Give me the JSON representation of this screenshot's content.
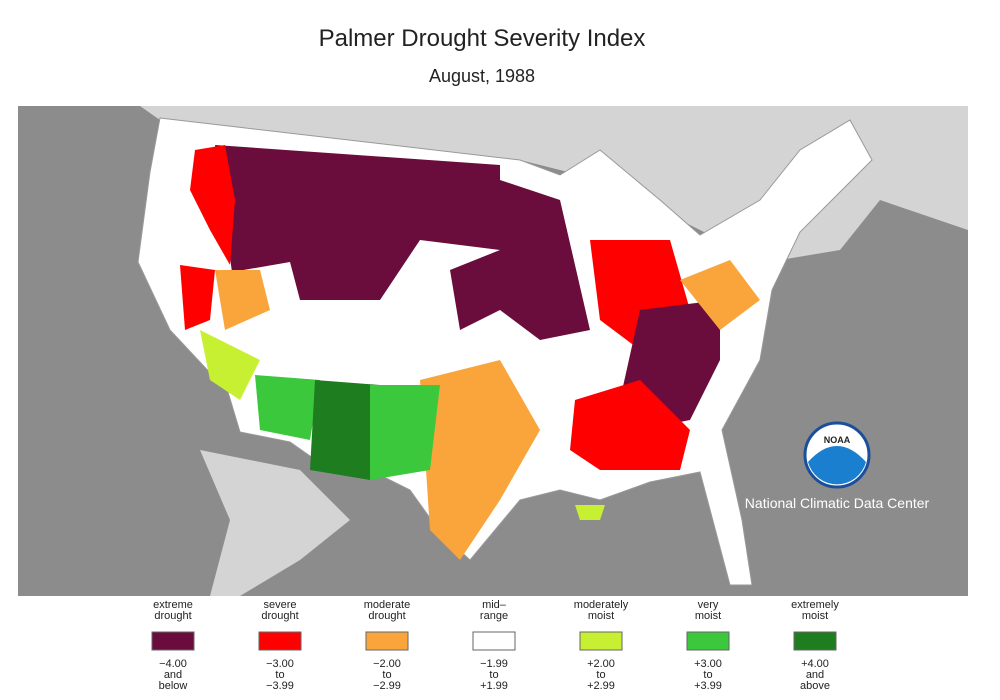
{
  "title": "Palmer Drought Severity Index",
  "subtitle": "August, 1988",
  "logo": {
    "label": "NOAA",
    "caption": "National Climatic Data Center"
  },
  "legend": [
    {
      "label": [
        "extreme",
        "drought"
      ],
      "color": "#6b0d3c",
      "range": [
        "−4.00",
        "and",
        "below"
      ]
    },
    {
      "label": [
        "severe",
        "drought"
      ],
      "color": "#ff0000",
      "range": [
        "−3.00",
        "to",
        "−3.99"
      ]
    },
    {
      "label": [
        "moderate",
        "drought"
      ],
      "color": "#faa53c",
      "range": [
        "−2.00",
        "to",
        "−2.99"
      ]
    },
    {
      "label": [
        "mid–",
        "range"
      ],
      "color": "#ffffff",
      "range": [
        "−1.99",
        "to",
        "+1.99"
      ]
    },
    {
      "label": [
        "moderately",
        "moist"
      ],
      "color": "#c8f032",
      "range": [
        "+2.00",
        "to",
        "+2.99"
      ]
    },
    {
      "label": [
        "very",
        "moist"
      ],
      "color": "#3cc83c",
      "range": [
        "+3.00",
        "to",
        "+3.99"
      ]
    },
    {
      "label": [
        "extremely",
        "moist"
      ],
      "color": "#1e7d1e",
      "range": [
        "+4.00",
        "and",
        "above"
      ]
    }
  ]
}
